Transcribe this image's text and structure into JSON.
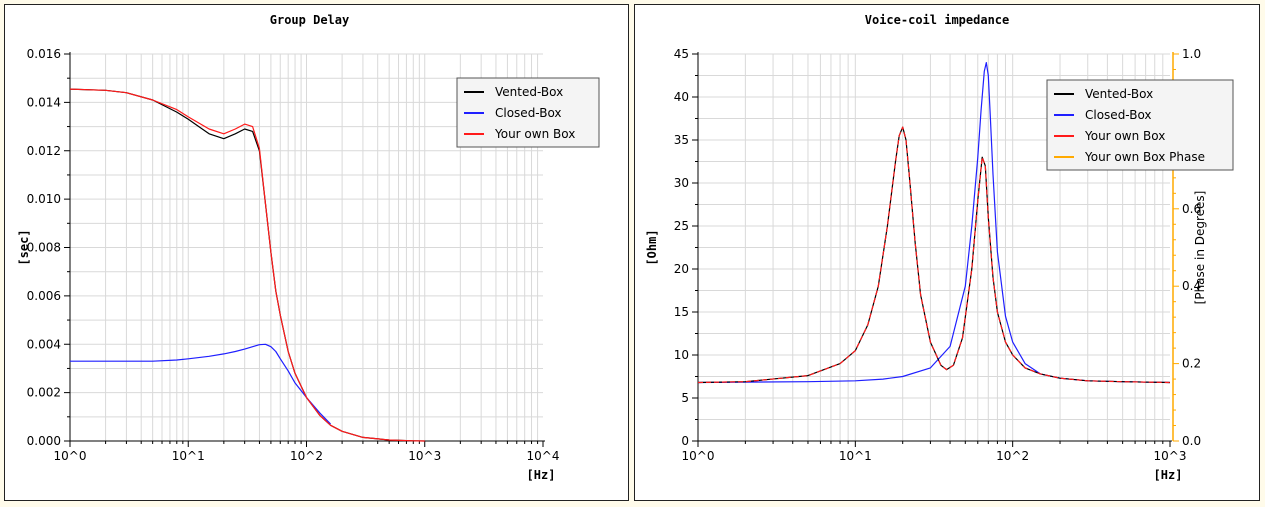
{
  "colors": {
    "vented": "#000000",
    "closed": "#1f1fff",
    "own": "#ff1a1a",
    "phase": "#ffaa00",
    "grid": "#d9d9d9",
    "background": "#fffbea"
  },
  "chart_data": [
    {
      "type": "line",
      "title": "Group Delay",
      "xlabel": "[Hz]",
      "ylabel": "[sec]",
      "x_scale": "log",
      "xlim": [
        1,
        10000
      ],
      "ylim": [
        0,
        0.016
      ],
      "x_ticks": [
        "10^0",
        "10^1",
        "10^2",
        "10^3",
        "10^4"
      ],
      "y_ticks": [
        "0.000",
        "0.002",
        "0.004",
        "0.006",
        "0.008",
        "0.010",
        "0.012",
        "0.014",
        "0.016"
      ],
      "grid": true,
      "legend_position": "top-right",
      "series": [
        {
          "name": "Vented-Box",
          "color": "vented",
          "x": [
            1,
            2,
            3,
            5,
            8,
            10,
            15,
            20,
            25,
            30,
            35,
            40,
            45,
            50,
            55,
            60,
            70,
            80,
            100,
            130,
            160,
            200,
            300,
            500,
            800,
            1000
          ],
          "y": [
            0.01455,
            0.0145,
            0.0144,
            0.0141,
            0.0136,
            0.0133,
            0.0127,
            0.0125,
            0.0127,
            0.0129,
            0.0128,
            0.012,
            0.0098,
            0.0078,
            0.0062,
            0.0052,
            0.0037,
            0.0028,
            0.0018,
            0.00105,
            0.00065,
            0.0004,
            0.00015,
            4e-05,
            1e-05,
            0.0
          ]
        },
        {
          "name": "Closed-Box",
          "color": "closed",
          "x": [
            1,
            2,
            3,
            5,
            8,
            10,
            15,
            20,
            25,
            30,
            35,
            40,
            45,
            50,
            55,
            60,
            70,
            80,
            100,
            130,
            160
          ],
          "y": [
            0.0033,
            0.0033,
            0.0033,
            0.0033,
            0.00335,
            0.0034,
            0.0035,
            0.0036,
            0.0037,
            0.0038,
            0.0039,
            0.00398,
            0.004,
            0.0039,
            0.0037,
            0.0034,
            0.0029,
            0.0024,
            0.0018,
            0.00115,
            0.0007
          ]
        },
        {
          "name": "Your own Box",
          "color": "own",
          "x": [
            1,
            2,
            3,
            5,
            8,
            10,
            15,
            20,
            25,
            30,
            35,
            40,
            45,
            50,
            55,
            60,
            70,
            80,
            100,
            130,
            160,
            200,
            300,
            500,
            800,
            1000
          ],
          "y": [
            0.01455,
            0.0145,
            0.0144,
            0.0141,
            0.0137,
            0.0134,
            0.0129,
            0.0127,
            0.0129,
            0.0131,
            0.013,
            0.0121,
            0.0098,
            0.0078,
            0.0062,
            0.0052,
            0.0037,
            0.0028,
            0.0018,
            0.00105,
            0.00065,
            0.0004,
            0.00015,
            4e-05,
            1e-05,
            0.0
          ]
        }
      ]
    },
    {
      "type": "line",
      "title": "Voice-coil impedance",
      "xlabel": "[Hz]",
      "ylabel": "[Ohm]",
      "ylabel_right": "[Phase in Degrees]",
      "x_scale": "log",
      "xlim": [
        1,
        1000
      ],
      "ylim": [
        0,
        45
      ],
      "ylim_right": [
        0,
        1
      ],
      "x_ticks": [
        "10^0",
        "10^1",
        "10^2",
        "10^3"
      ],
      "y_ticks": [
        "0",
        "5",
        "10",
        "15",
        "20",
        "25",
        "30",
        "35",
        "40",
        "45"
      ],
      "y_ticks_right": [
        "0.0",
        "0.2",
        "0.4",
        "0.6",
        "0.8",
        "1.0"
      ],
      "grid": true,
      "legend_position": "top-right",
      "series": [
        {
          "name": "Vented-Box",
          "color": "vented",
          "x": [
            1,
            2,
            5,
            8,
            10,
            12,
            14,
            16,
            18,
            19,
            20,
            21,
            22,
            24,
            26,
            30,
            35,
            38,
            42,
            48,
            55,
            60,
            64,
            67,
            70,
            75,
            80,
            90,
            100,
            120,
            150,
            200,
            300,
            500,
            1000
          ],
          "y": [
            6.8,
            6.9,
            7.6,
            9.0,
            10.5,
            13.5,
            18.0,
            25.0,
            32.5,
            35.5,
            36.5,
            35.0,
            31.0,
            23.0,
            17.0,
            11.5,
            8.8,
            8.3,
            8.8,
            12.0,
            20.0,
            28.0,
            33.0,
            32.0,
            26.0,
            19.0,
            15.0,
            11.5,
            10.0,
            8.5,
            7.8,
            7.3,
            7.0,
            6.9,
            6.8
          ]
        },
        {
          "name": "Closed-Box",
          "color": "closed",
          "x": [
            1,
            2,
            5,
            10,
            15,
            20,
            30,
            40,
            50,
            55,
            60,
            63,
            66,
            68,
            70,
            72,
            75,
            80,
            90,
            100,
            120,
            150,
            200,
            300,
            500,
            1000
          ],
          "y": [
            6.8,
            6.85,
            6.9,
            7.0,
            7.2,
            7.5,
            8.5,
            11.0,
            18.0,
            25.0,
            33.0,
            38.5,
            43.0,
            44.0,
            42.5,
            38.0,
            31.0,
            22.0,
            14.5,
            11.5,
            9.0,
            7.8,
            7.3,
            7.0,
            6.9,
            6.8
          ]
        },
        {
          "name": "Your own Box",
          "color": "own",
          "x": [
            1,
            2,
            5,
            8,
            10,
            12,
            14,
            16,
            18,
            19,
            20,
            21,
            22,
            24,
            26,
            30,
            35,
            38,
            42,
            48,
            55,
            60,
            64,
            67,
            70,
            75,
            80,
            90,
            100,
            120,
            150,
            200,
            300,
            500,
            1000
          ],
          "y": [
            6.8,
            6.9,
            7.6,
            9.0,
            10.5,
            13.5,
            18.0,
            25.0,
            32.5,
            35.5,
            36.5,
            35.0,
            31.0,
            23.0,
            17.0,
            11.5,
            8.8,
            8.3,
            8.8,
            12.0,
            20.0,
            28.0,
            33.0,
            32.0,
            26.0,
            19.0,
            15.0,
            11.5,
            10.0,
            8.5,
            7.8,
            7.3,
            7.0,
            6.9,
            6.8
          ]
        },
        {
          "name": "Your own Box Phase",
          "color": "phase",
          "x": [],
          "y": []
        }
      ]
    }
  ]
}
